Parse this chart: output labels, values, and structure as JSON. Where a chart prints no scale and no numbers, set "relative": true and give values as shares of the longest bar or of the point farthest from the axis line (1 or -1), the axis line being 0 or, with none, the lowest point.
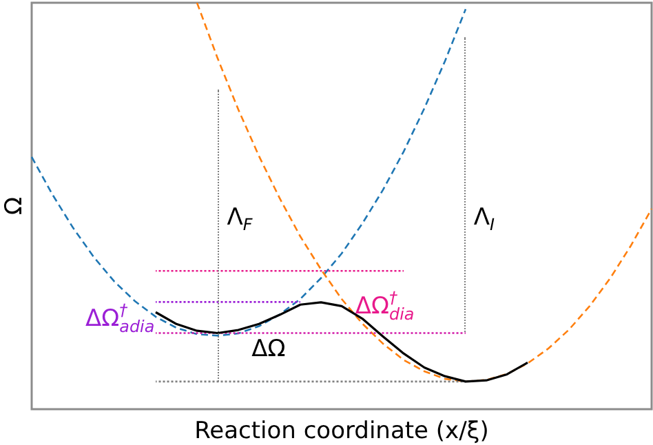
{
  "chart_data": {
    "type": "line",
    "relative": true,
    "xlabel": "Reaction coordinate (x/ξ)",
    "ylabel": "Ω",
    "legend": false,
    "marker": "none",
    "categories": [
      null,
      null,
      null,
      null,
      null,
      null,
      null,
      null,
      null,
      null,
      null,
      null,
      null,
      null,
      null,
      null,
      null,
      null,
      null,
      null,
      null,
      null,
      null,
      null,
      null,
      null,
      null,
      null,
      null,
      null,
      null
    ],
    "series": [
      {
        "color": "#1f77b4",
        "line_style": "dashed",
        "values": [
          0.593,
          0.494,
          0.406,
          0.329,
          0.264,
          0.212,
          0.171,
          0.142,
          0.125,
          0.121,
          0.127,
          0.146,
          0.177,
          0.218,
          0.273,
          0.338,
          0.417,
          0.506,
          0.607,
          0.721,
          0.846,
          0.983,
          null,
          null,
          null,
          null,
          null,
          null,
          null,
          null,
          null
        ]
      },
      {
        "color": "#ff7f0e",
        "line_style": "dashed",
        "values": [
          null,
          null,
          null,
          null,
          null,
          null,
          null,
          null,
          1,
          0.853,
          0.718,
          0.595,
          0.484,
          0.383,
          0.296,
          0.218,
          0.153,
          0.1,
          0.057,
          0.027,
          0.007,
          0,
          0.004,
          0.02,
          0.048,
          0.087,
          0.137,
          0.199,
          0.273,
          0.359,
          0.456
        ]
      },
      {
        "color": "#808080",
        "line_style": "dotted",
        "values": [
          null,
          null,
          null,
          null,
          null,
          null,
          0,
          0,
          0,
          0,
          0,
          0,
          0,
          0,
          0,
          0,
          0,
          0,
          0,
          0,
          0,
          0,
          null,
          null,
          null,
          null,
          null,
          null,
          null,
          null,
          null
        ]
      },
      {
        "color": "#e8198b",
        "line_style": "dotted",
        "values": [
          null,
          null,
          null,
          null,
          null,
          null,
          0.292,
          0.292,
          0.292,
          0.292,
          0.292,
          0.292,
          0.292,
          0.292,
          0.292,
          0.292,
          0.292,
          0.292,
          0.292,
          null,
          null,
          null,
          null,
          null,
          null,
          null,
          null,
          null,
          null,
          null,
          null
        ]
      },
      {
        "color": "#9b1fd6",
        "line_style": "dotted",
        "values": [
          null,
          null,
          null,
          null,
          null,
          null,
          0.21,
          0.21,
          0.21,
          0.21,
          0.21,
          0.21,
          0.21,
          0.21,
          null,
          null,
          null,
          null,
          null,
          null,
          null,
          null,
          null,
          null,
          null,
          null,
          null,
          null,
          null,
          null,
          null
        ]
      },
      {
        "color": "#d21aa8",
        "line_style": "dotted",
        "values": [
          null,
          null,
          null,
          null,
          null,
          null,
          0.128,
          0.128,
          0.128,
          0.128,
          0.128,
          0.128,
          0.128,
          0.128,
          0.128,
          0.128,
          0.128,
          0.128,
          0.128,
          0.128,
          0.128,
          0.128,
          null,
          null,
          null,
          null,
          null,
          null,
          null,
          null,
          null
        ]
      },
      {
        "color": "#000000",
        "line_style": "solid",
        "values": [
          null,
          null,
          null,
          null,
          null,
          null,
          0.183,
          0.152,
          0.134,
          0.128,
          0.136,
          0.152,
          0.176,
          0.203,
          0.209,
          0.199,
          0.166,
          0.119,
          0.074,
          0.037,
          0.014,
          0,
          0.003,
          0.019,
          0.05,
          null,
          null,
          null,
          null,
          null,
          null
        ]
      }
    ],
    "annotations": [
      "Λ$_{F}$",
      "Λ$_{I}$",
      "ΔΩ",
      "ΔΩ$^{†}$$_{adia}$",
      "ΔΩ$^{†}$$_{dia}$"
    ]
  }
}
